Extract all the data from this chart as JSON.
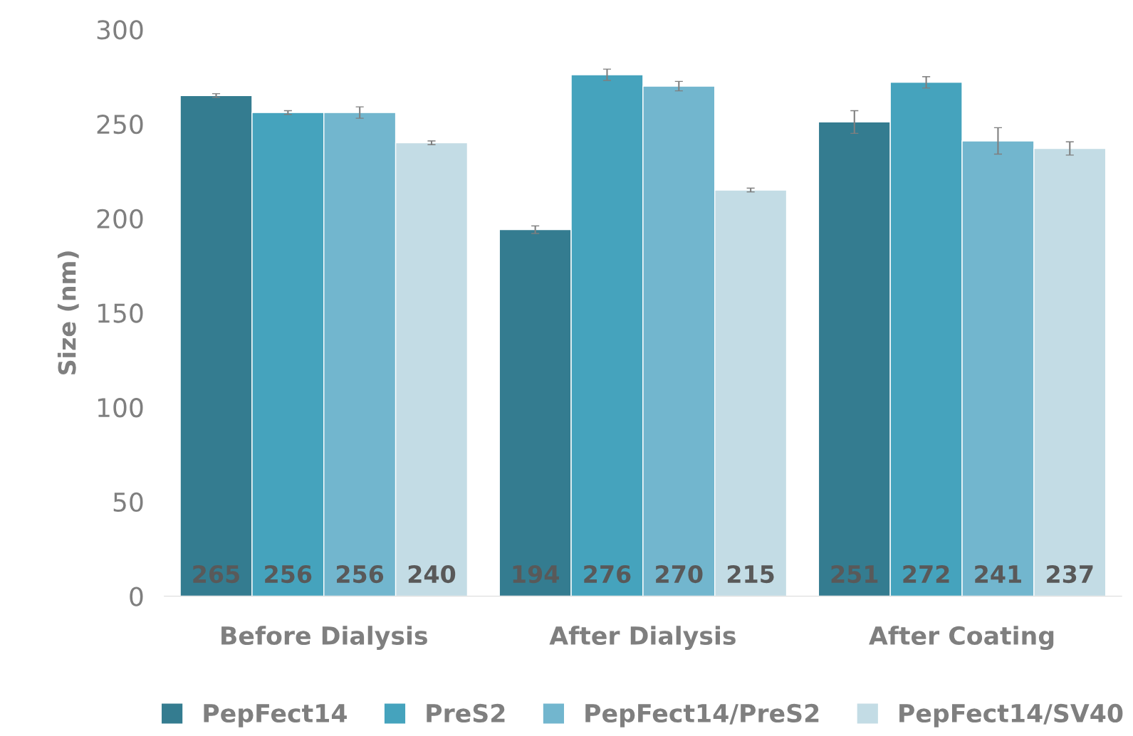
{
  "chart_data": {
    "type": "bar",
    "ylabel": "Size (nm)",
    "categories": [
      "Before Dialysis",
      "After Dialysis",
      "After Coating"
    ],
    "series": [
      {
        "name": "PepFect14",
        "color": "#347c90",
        "values": [
          265,
          194,
          251
        ],
        "errors": [
          1,
          2,
          6
        ]
      },
      {
        "name": "PreS2",
        "color": "#45a3bd",
        "values": [
          256,
          276,
          272
        ],
        "errors": [
          1,
          3,
          3
        ]
      },
      {
        "name": "PepFect14/PreS2",
        "color": "#72b6ce",
        "values": [
          256,
          270,
          241
        ],
        "errors": [
          3,
          2.5,
          7
        ]
      },
      {
        "name": "PepFect14/SV40",
        "color": "#c3dce5",
        "values": [
          240,
          215,
          237
        ],
        "errors": [
          1,
          1,
          3.5
        ]
      }
    ],
    "ylim": [
      0,
      300
    ],
    "yticks": [
      0,
      50,
      100,
      150,
      200,
      250,
      300
    ],
    "grid": false,
    "legend": "bottom",
    "data_labels": true
  }
}
